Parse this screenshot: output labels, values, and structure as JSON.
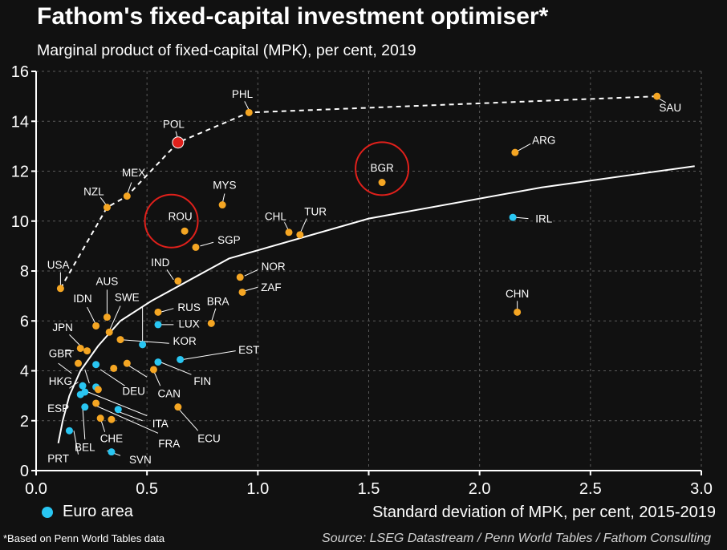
{
  "header": {
    "title": "Fathom's fixed-capital investment optimiser*",
    "subtitle": "Marginal product of fixed-capital (MPK), per cent, 2019"
  },
  "legend": {
    "label": "Euro area",
    "color": "#29c6f2"
  },
  "footer": {
    "footnote": "*Based on Penn World Tables data",
    "source": "Source: LSEG Datastream / Penn World Tables / Fathom Consulting"
  },
  "chart_data": {
    "type": "scatter",
    "xlabel": "Standard deviation of MPK, per cent, 2015-2019",
    "ylabel": "",
    "xlim": [
      0,
      3
    ],
    "ylim": [
      0,
      16
    ],
    "xticks": [
      "0.0",
      "0.5",
      "1.0",
      "1.5",
      "2.0",
      "2.5",
      "3.0"
    ],
    "yticks": [
      "0",
      "2",
      "4",
      "6",
      "8",
      "10",
      "12",
      "14",
      "16"
    ],
    "grid": true,
    "colors": {
      "other": "#f5a623",
      "euro": "#29c6f2",
      "highlight": "#e0201b",
      "line": "#ffffff"
    },
    "points": [
      {
        "label": "SAU",
        "x": 2.8,
        "y": 15.0,
        "group": "other"
      },
      {
        "label": "PHL",
        "x": 0.96,
        "y": 14.35,
        "group": "other"
      },
      {
        "label": "POL",
        "x": 0.64,
        "y": 13.15,
        "group": "highlight"
      },
      {
        "label": "ARG",
        "x": 2.16,
        "y": 12.75,
        "group": "other"
      },
      {
        "label": "BGR",
        "x": 1.56,
        "y": 11.55,
        "group": "other"
      },
      {
        "label": "MEX",
        "x": 0.41,
        "y": 11.0,
        "group": "other"
      },
      {
        "label": "MYS",
        "x": 0.84,
        "y": 10.65,
        "group": "other"
      },
      {
        "label": "NZL",
        "x": 0.32,
        "y": 10.55,
        "group": "other"
      },
      {
        "label": "IRL",
        "x": 2.15,
        "y": 10.15,
        "group": "euro"
      },
      {
        "label": "ROU",
        "x": 0.67,
        "y": 9.6,
        "group": "other"
      },
      {
        "label": "CHL",
        "x": 1.14,
        "y": 9.55,
        "group": "other"
      },
      {
        "label": "TUR",
        "x": 1.19,
        "y": 9.45,
        "group": "other"
      },
      {
        "label": "SGP",
        "x": 0.72,
        "y": 8.95,
        "group": "other"
      },
      {
        "label": "NOR",
        "x": 0.92,
        "y": 7.75,
        "group": "other"
      },
      {
        "label": "IND",
        "x": 0.64,
        "y": 7.6,
        "group": "other"
      },
      {
        "label": "USA",
        "x": 0.11,
        "y": 7.3,
        "group": "other"
      },
      {
        "label": "ZAF",
        "x": 0.93,
        "y": 7.15,
        "group": "other"
      },
      {
        "label": "CHN",
        "x": 2.17,
        "y": 6.35,
        "group": "other"
      },
      {
        "label": "RUS",
        "x": 0.55,
        "y": 6.35,
        "group": "other"
      },
      {
        "label": "AUS",
        "x": 0.32,
        "y": 6.15,
        "group": "other"
      },
      {
        "label": "BRA",
        "x": 0.79,
        "y": 5.9,
        "group": "other"
      },
      {
        "label": "LUX",
        "x": 0.55,
        "y": 5.85,
        "group": "euro"
      },
      {
        "label": "IDN",
        "x": 0.27,
        "y": 5.8,
        "group": "other"
      },
      {
        "label": "SWE",
        "x": 0.33,
        "y": 5.55,
        "group": "other"
      },
      {
        "label": "KOR",
        "x": 0.38,
        "y": 5.25,
        "group": "other"
      },
      {
        "label": "euro area",
        "x": 0.48,
        "y": 5.05,
        "group": "euro"
      },
      {
        "label": "JPN",
        "x": 0.2,
        "y": 4.9,
        "group": "other"
      },
      {
        "label": "GBR",
        "x": 0.23,
        "y": 4.8,
        "group": "other"
      },
      {
        "label": "EST",
        "x": 0.65,
        "y": 4.45,
        "group": "euro"
      },
      {
        "label": "FIN",
        "x": 0.55,
        "y": 4.35,
        "group": "euro"
      },
      {
        "label": "euro area",
        "x": 0.41,
        "y": 4.3,
        "group": "other"
      },
      {
        "label": "HKG",
        "x": 0.19,
        "y": 4.3,
        "group": "other"
      },
      {
        "label": "DEU",
        "x": 0.27,
        "y": 4.25,
        "group": "euro"
      },
      {
        "label": "euro area",
        "x": 0.35,
        "y": 4.1,
        "group": "other"
      },
      {
        "label": "CAN",
        "x": 0.53,
        "y": 4.05,
        "group": "other"
      },
      {
        "label": "euro area",
        "x": 0.21,
        "y": 3.4,
        "group": "euro"
      },
      {
        "label": "euro area",
        "x": 0.27,
        "y": 3.35,
        "group": "euro"
      },
      {
        "label": "euro area",
        "x": 0.28,
        "y": 3.25,
        "group": "other"
      },
      {
        "label": "ESP",
        "x": 0.22,
        "y": 3.15,
        "group": "euro"
      },
      {
        "label": "euro area",
        "x": 0.2,
        "y": 3.05,
        "group": "euro"
      },
      {
        "label": "euro area",
        "x": 0.27,
        "y": 2.7,
        "group": "other"
      },
      {
        "label": "ECU",
        "x": 0.64,
        "y": 2.55,
        "group": "other"
      },
      {
        "label": "BEL",
        "x": 0.22,
        "y": 2.55,
        "group": "euro"
      },
      {
        "label": "ITA",
        "x": 0.37,
        "y": 2.45,
        "group": "euro"
      },
      {
        "label": "CHE",
        "x": 0.29,
        "y": 2.1,
        "group": "other"
      },
      {
        "label": "FRA",
        "x": 0.34,
        "y": 2.05,
        "group": "other"
      },
      {
        "label": "PRT",
        "x": 0.15,
        "y": 1.6,
        "group": "euro"
      },
      {
        "label": "SVN",
        "x": 0.34,
        "y": 0.75,
        "group": "euro"
      }
    ],
    "frontier": [
      {
        "x": 0.11,
        "y": 7.3
      },
      {
        "x": 0.32,
        "y": 10.55
      },
      {
        "x": 0.41,
        "y": 11.0
      },
      {
        "x": 0.64,
        "y": 13.15
      },
      {
        "x": 0.96,
        "y": 14.35
      },
      {
        "x": 2.8,
        "y": 15.0
      }
    ],
    "trend": [
      {
        "x": 0.1,
        "y": 1.1
      },
      {
        "x": 0.12,
        "y": 2.0
      },
      {
        "x": 0.15,
        "y": 3.0
      },
      {
        "x": 0.2,
        "y": 4.0
      },
      {
        "x": 0.28,
        "y": 5.0
      },
      {
        "x": 0.38,
        "y": 6.0
      },
      {
        "x": 0.52,
        "y": 6.8
      },
      {
        "x": 0.87,
        "y": 8.5
      },
      {
        "x": 1.5,
        "y": 10.1
      },
      {
        "x": 2.28,
        "y": 11.35
      },
      {
        "x": 2.97,
        "y": 12.2
      }
    ],
    "highlight_circles": [
      {
        "label": "ROU",
        "x": 0.61,
        "y": 10.0
      },
      {
        "label": "BGR",
        "x": 1.56,
        "y": 12.1
      }
    ],
    "annotations": [
      {
        "text": "SAU",
        "x": 2.86,
        "y": 14.55
      },
      {
        "text": "PHL",
        "x": 0.93,
        "y": 15.1
      },
      {
        "text": "POL",
        "x": 0.62,
        "y": 13.9
      },
      {
        "text": "ARG",
        "x": 2.29,
        "y": 13.25
      },
      {
        "text": "BGR",
        "x": 1.56,
        "y": 12.15
      },
      {
        "text": "MEX",
        "x": 0.44,
        "y": 11.95
      },
      {
        "text": "MYS",
        "x": 0.85,
        "y": 11.45
      },
      {
        "text": "NZL",
        "x": 0.26,
        "y": 11.2
      },
      {
        "text": "IRL",
        "x": 2.29,
        "y": 10.1
      },
      {
        "text": "ROU",
        "x": 0.65,
        "y": 10.2
      },
      {
        "text": "CHL",
        "x": 1.08,
        "y": 10.2
      },
      {
        "text": "TUR",
        "x": 1.26,
        "y": 10.4
      },
      {
        "text": "SGP",
        "x": 0.87,
        "y": 9.25
      },
      {
        "text": "NOR",
        "x": 1.07,
        "y": 8.2
      },
      {
        "text": "IND",
        "x": 0.56,
        "y": 8.35
      },
      {
        "text": "USA",
        "x": 0.1,
        "y": 8.25
      },
      {
        "text": "ZAF",
        "x": 1.06,
        "y": 7.35
      },
      {
        "text": "CHN",
        "x": 2.17,
        "y": 7.1
      },
      {
        "text": "RUS",
        "x": 0.69,
        "y": 6.55
      },
      {
        "text": "AUS",
        "x": 0.32,
        "y": 7.6
      },
      {
        "text": "BRA",
        "x": 0.82,
        "y": 6.8
      },
      {
        "text": "LUX",
        "x": 0.69,
        "y": 5.9
      },
      {
        "text": "IDN",
        "x": 0.21,
        "y": 6.9
      },
      {
        "text": "SWE",
        "x": 0.41,
        "y": 6.95
      },
      {
        "text": "KOR",
        "x": 0.67,
        "y": 5.2
      },
      {
        "text": "JPN",
        "x": 0.12,
        "y": 5.75
      },
      {
        "text": "GBR",
        "x": 0.11,
        "y": 4.7
      },
      {
        "text": "EST",
        "x": 0.96,
        "y": 4.85
      },
      {
        "text": "FIN",
        "x": 0.75,
        "y": 3.6
      },
      {
        "text": "HKG",
        "x": 0.11,
        "y": 3.6
      },
      {
        "text": "DEU",
        "x": 0.44,
        "y": 3.2
      },
      {
        "text": "CAN",
        "x": 0.6,
        "y": 3.1
      },
      {
        "text": "ESP",
        "x": 0.1,
        "y": 2.5
      },
      {
        "text": "ITA",
        "x": 0.56,
        "y": 1.9
      },
      {
        "text": "CHE",
        "x": 0.34,
        "y": 1.3
      },
      {
        "text": "FRA",
        "x": 0.6,
        "y": 1.1
      },
      {
        "text": "ECU",
        "x": 0.78,
        "y": 1.3
      },
      {
        "text": "BEL",
        "x": 0.22,
        "y": 0.95
      },
      {
        "text": "PRT",
        "x": 0.1,
        "y": 0.5
      },
      {
        "text": "SVN",
        "x": 0.47,
        "y": 0.45
      }
    ],
    "leaders": [
      {
        "from": {
          "x": 0.22,
          "y": 4.05
        },
        "to": {
          "x": 0.24,
          "y": 3.5
        }
      },
      {
        "from": {
          "x": 0.29,
          "y": 4.05
        },
        "to": {
          "x": 0.4,
          "y": 3.4
        }
      },
      {
        "from": {
          "x": 0.22,
          "y": 3.2
        },
        "to": {
          "x": 0.5,
          "y": 2.2
        }
      },
      {
        "from": {
          "x": 0.27,
          "y": 2.6
        },
        "to": {
          "x": 0.55,
          "y": 1.5
        }
      },
      {
        "from": {
          "x": 0.15,
          "y": 3.3
        },
        "to": {
          "x": 0.19,
          "y": 3.55
        }
      },
      {
        "from": {
          "x": 0.64,
          "y": 2.5
        },
        "to": {
          "x": 0.73,
          "y": 1.6
        }
      },
      {
        "from": {
          "x": 0.32,
          "y": 0.8
        },
        "to": {
          "x": 0.38,
          "y": 0.6
        }
      },
      {
        "from": {
          "x": 0.17,
          "y": 1.6
        },
        "to": {
          "x": 0.19,
          "y": 0.65
        }
      },
      {
        "from": {
          "x": 0.21,
          "y": 2.5
        },
        "to": {
          "x": 0.22,
          "y": 1.25
        }
      },
      {
        "from": {
          "x": 0.29,
          "y": 2.1
        },
        "to": {
          "x": 0.31,
          "y": 1.55
        }
      },
      {
        "from": {
          "x": 0.36,
          "y": 2.4
        },
        "to": {
          "x": 0.48,
          "y": 2.0
        }
      },
      {
        "from": {
          "x": 0.1,
          "y": 4.3
        },
        "to": {
          "x": 0.16,
          "y": 3.9
        }
      },
      {
        "from": {
          "x": 0.17,
          "y": 4.8
        },
        "to": {
          "x": 0.13,
          "y": 4.8
        }
      },
      {
        "from": {
          "x": 0.2,
          "y": 5.0
        },
        "to": {
          "x": 0.15,
          "y": 5.45
        }
      },
      {
        "from": {
          "x": 0.27,
          "y": 5.85
        },
        "to": {
          "x": 0.23,
          "y": 6.55
        }
      },
      {
        "from": {
          "x": 0.32,
          "y": 6.25
        },
        "to": {
          "x": 0.32,
          "y": 7.25
        }
      },
      {
        "from": {
          "x": 0.33,
          "y": 5.6
        },
        "to": {
          "x": 0.38,
          "y": 6.6
        }
      },
      {
        "from": {
          "x": 0.38,
          "y": 5.25
        },
        "to": {
          "x": 0.6,
          "y": 5.1
        }
      },
      {
        "from": {
          "x": 0.48,
          "y": 5.1
        },
        "to": {
          "x": 0.48,
          "y": 6.6
        }
      },
      {
        "from": {
          "x": 0.56,
          "y": 5.85
        },
        "to": {
          "x": 0.62,
          "y": 5.85
        }
      },
      {
        "from": {
          "x": 0.66,
          "y": 4.45
        },
        "to": {
          "x": 0.9,
          "y": 4.8
        }
      },
      {
        "from": {
          "x": 0.56,
          "y": 4.35
        },
        "to": {
          "x": 0.7,
          "y": 3.85
        }
      },
      {
        "from": {
          "x": 0.41,
          "y": 4.25
        },
        "to": {
          "x": 0.5,
          "y": 3.75
        }
      },
      {
        "from": {
          "x": 0.53,
          "y": 4.0
        },
        "to": {
          "x": 0.56,
          "y": 3.4
        }
      },
      {
        "from": {
          "x": 0.62,
          "y": 7.65
        },
        "to": {
          "x": 0.59,
          "y": 8.05
        }
      },
      {
        "from": {
          "x": 0.74,
          "y": 9.0
        },
        "to": {
          "x": 0.8,
          "y": 9.15
        }
      },
      {
        "from": {
          "x": 0.94,
          "y": 7.8
        },
        "to": {
          "x": 1.0,
          "y": 8.05
        }
      },
      {
        "from": {
          "x": 0.94,
          "y": 7.2
        },
        "to": {
          "x": 1.0,
          "y": 7.35
        }
      },
      {
        "from": {
          "x": 2.8,
          "y": 14.95
        },
        "to": {
          "x": 2.84,
          "y": 14.75
        }
      },
      {
        "from": {
          "x": 0.96,
          "y": 14.45
        },
        "to": {
          "x": 0.94,
          "y": 14.8
        }
      },
      {
        "from": {
          "x": 0.64,
          "y": 13.25
        },
        "to": {
          "x": 0.63,
          "y": 13.6
        }
      },
      {
        "from": {
          "x": 2.17,
          "y": 12.8
        },
        "to": {
          "x": 2.23,
          "y": 13.1
        }
      },
      {
        "from": {
          "x": 0.41,
          "y": 11.05
        },
        "to": {
          "x": 0.43,
          "y": 11.55
        }
      },
      {
        "from": {
          "x": 0.32,
          "y": 10.6
        },
        "to": {
          "x": 0.29,
          "y": 10.95
        }
      },
      {
        "from": {
          "x": 0.84,
          "y": 10.7
        },
        "to": {
          "x": 0.85,
          "y": 11.1
        }
      },
      {
        "from": {
          "x": 2.16,
          "y": 10.15
        },
        "to": {
          "x": 2.22,
          "y": 10.1
        }
      },
      {
        "from": {
          "x": 1.14,
          "y": 9.6
        },
        "to": {
          "x": 1.12,
          "y": 9.95
        }
      },
      {
        "from": {
          "x": 1.19,
          "y": 9.5
        },
        "to": {
          "x": 1.22,
          "y": 10.1
        }
      },
      {
        "from": {
          "x": 2.17,
          "y": 6.4
        },
        "to": {
          "x": 2.17,
          "y": 6.8
        }
      },
      {
        "from": {
          "x": 0.79,
          "y": 5.95
        },
        "to": {
          "x": 0.81,
          "y": 6.5
        }
      },
      {
        "from": {
          "x": 0.56,
          "y": 6.35
        },
        "to": {
          "x": 0.62,
          "y": 6.5
        }
      },
      {
        "from": {
          "x": 0.11,
          "y": 7.35
        },
        "to": {
          "x": 0.11,
          "y": 7.95
        }
      }
    ]
  }
}
